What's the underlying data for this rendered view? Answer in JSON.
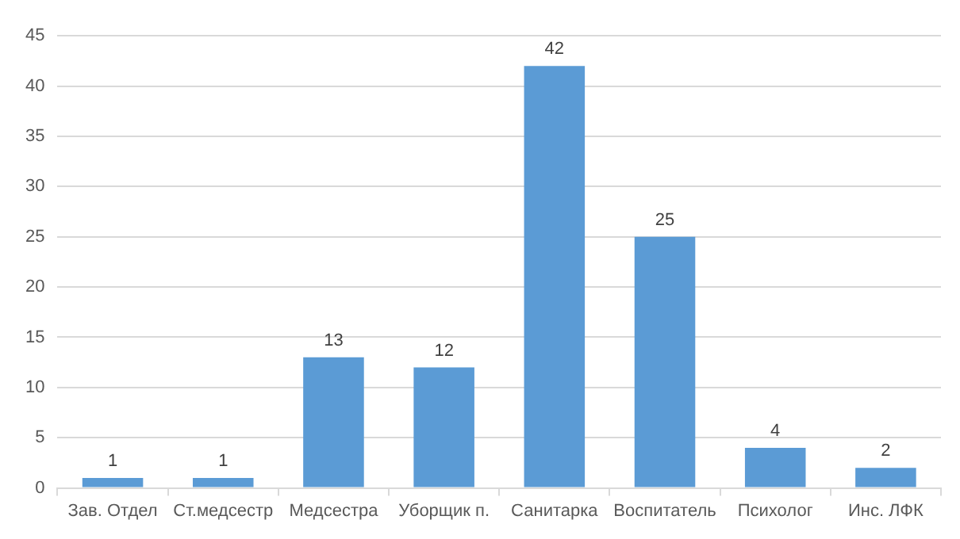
{
  "chart_data": {
    "type": "bar",
    "categories": [
      "Зав. Отдел",
      "Ст.медсестр",
      "Медсестра",
      "Уборщик п.",
      "Санитарка",
      "Воспитатель",
      "Психолог",
      "Инс. ЛФК"
    ],
    "values": [
      1,
      1,
      13,
      12,
      42,
      25,
      4,
      2
    ],
    "color": "#5b9bd5",
    "ylim": [
      0,
      45
    ],
    "yticks": [
      0,
      5,
      10,
      15,
      20,
      25,
      30,
      35,
      40,
      45
    ],
    "grid": "y",
    "data_labels": true
  }
}
